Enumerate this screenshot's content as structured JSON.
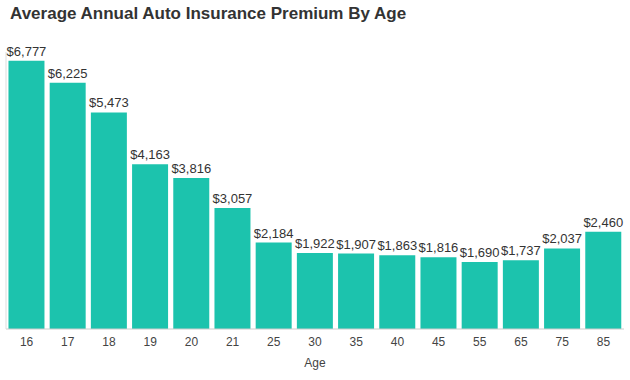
{
  "chart_data": {
    "type": "bar",
    "title": "Average Annual Auto Insurance Premium By Age",
    "x_label": "Age",
    "categories": [
      "16",
      "17",
      "18",
      "19",
      "20",
      "21",
      "25",
      "30",
      "35",
      "40",
      "45",
      "55",
      "65",
      "75",
      "85"
    ],
    "values": [
      6777,
      6225,
      5473,
      4163,
      3816,
      3057,
      2184,
      1922,
      1907,
      1863,
      1816,
      1690,
      1737,
      2037,
      2460
    ],
    "value_labels": [
      "$6,777",
      "$6,225",
      "$5,473",
      "$4,163",
      "$3,816",
      "$3,057",
      "$2,184",
      "$1,922",
      "$1,907",
      "$1,863",
      "$1,816",
      "$1,690",
      "$1,737",
      "$2,037",
      "$2,460"
    ],
    "color": "#1cc3ad",
    "ylim": [
      0,
      7000
    ],
    "grid": false,
    "data_labels": true,
    "tick_labels": "x"
  }
}
